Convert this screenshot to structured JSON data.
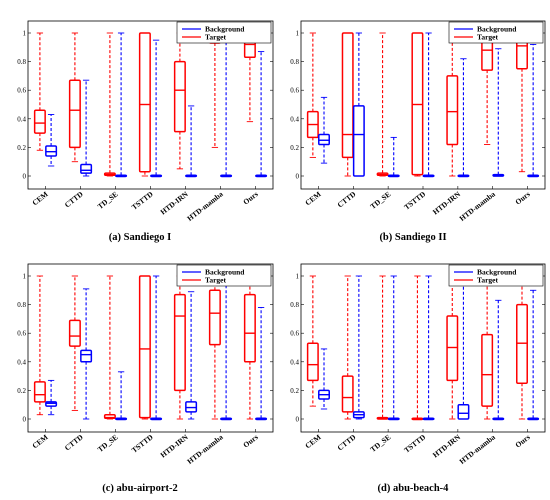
{
  "figure": {
    "colors": {
      "background": "#0000ff",
      "target": "#ff0000",
      "axis": "#000000"
    },
    "legend_entries": [
      "Background",
      "Target"
    ]
  },
  "chart_data": [
    {
      "type": "boxplot",
      "caption": "(a) Sandiego I",
      "categories": [
        "CEM",
        "CTTD",
        "TD_SE",
        "TSTTD",
        "HTD-IRN",
        "HTD-mamba",
        "Ours"
      ],
      "ylim": [
        0,
        1
      ],
      "yticks": [
        "0",
        "0.2",
        "0.4",
        "0.6",
        "0.8",
        "1"
      ],
      "legend": "top-right",
      "series": [
        {
          "name": "Target",
          "boxes": [
            {
              "min": 0.18,
              "q1": 0.3,
              "median": 0.37,
              "q3": 0.46,
              "max": 1.0
            },
            {
              "min": 0.1,
              "q1": 0.2,
              "median": 0.46,
              "q3": 0.67,
              "max": 1.0
            },
            {
              "min": 0.0,
              "q1": 0.005,
              "median": 0.01,
              "q3": 0.02,
              "max": 1.0
            },
            {
              "min": 0.0,
              "q1": 0.03,
              "median": 0.5,
              "q3": 1.0,
              "max": 1.0
            },
            {
              "min": 0.05,
              "q1": 0.31,
              "median": 0.6,
              "q3": 0.8,
              "max": 1.0
            },
            {
              "min": 0.2,
              "q1": 0.93,
              "median": 0.96,
              "q3": 0.985,
              "max": 1.0
            },
            {
              "min": 0.38,
              "q1": 0.83,
              "median": 0.92,
              "q3": 0.97,
              "max": 1.0
            }
          ]
        },
        {
          "name": "Background",
          "boxes": [
            {
              "min": 0.07,
              "q1": 0.14,
              "median": 0.17,
              "q3": 0.21,
              "max": 0.43
            },
            {
              "min": 0.0,
              "q1": 0.02,
              "median": 0.04,
              "q3": 0.08,
              "max": 0.67
            },
            {
              "min": 0.0,
              "q1": 0.0,
              "median": 0.0,
              "q3": 0.005,
              "max": 1.0
            },
            {
              "min": 0.0,
              "q1": 0.0,
              "median": 0.0,
              "q3": 0.005,
              "max": 0.95
            },
            {
              "min": 0.0,
              "q1": 0.0,
              "median": 0.0,
              "q3": 0.005,
              "max": 0.49
            },
            {
              "min": 0.0,
              "q1": 0.0,
              "median": 0.0,
              "q3": 0.005,
              "max": 1.0
            },
            {
              "min": 0.0,
              "q1": 0.0,
              "median": 0.0,
              "q3": 0.005,
              "max": 0.87
            }
          ]
        }
      ]
    },
    {
      "type": "boxplot",
      "caption": "(b) Sandiego II",
      "categories": [
        "CEM",
        "CTTD",
        "TD_SE",
        "TSTTD",
        "HTD-IRN",
        "HTD-mamba",
        "Ours"
      ],
      "ylim": [
        0,
        1
      ],
      "yticks": [
        "0",
        "0.2",
        "0.4",
        "0.6",
        "0.8",
        "1"
      ],
      "legend": "top-right",
      "series": [
        {
          "name": "Target",
          "boxes": [
            {
              "min": 0.13,
              "q1": 0.27,
              "median": 0.36,
              "q3": 0.45,
              "max": 1.0
            },
            {
              "min": 0.0,
              "q1": 0.13,
              "median": 0.29,
              "q3": 1.0,
              "max": 1.0
            },
            {
              "min": 0.0,
              "q1": 0.005,
              "median": 0.01,
              "q3": 0.02,
              "max": 1.0
            },
            {
              "min": 0.0,
              "q1": 0.01,
              "median": 0.5,
              "q3": 1.0,
              "max": 1.0
            },
            {
              "min": 0.0,
              "q1": 0.22,
              "median": 0.45,
              "q3": 0.7,
              "max": 1.0
            },
            {
              "min": 0.22,
              "q1": 0.74,
              "median": 0.88,
              "q3": 0.95,
              "max": 1.0
            },
            {
              "min": 0.03,
              "q1": 0.75,
              "median": 0.91,
              "q3": 0.98,
              "max": 1.0
            }
          ]
        },
        {
          "name": "Background",
          "boxes": [
            {
              "min": 0.09,
              "q1": 0.22,
              "median": 0.25,
              "q3": 0.29,
              "max": 0.55
            },
            {
              "min": 0.0,
              "q1": 0.0,
              "median": 0.29,
              "q3": 0.49,
              "max": 1.0
            },
            {
              "min": 0.0,
              "q1": 0.0,
              "median": 0.0,
              "q3": 0.005,
              "max": 0.27
            },
            {
              "min": 0.0,
              "q1": 0.0,
              "median": 0.0,
              "q3": 0.005,
              "max": 1.0
            },
            {
              "min": 0.0,
              "q1": 0.0,
              "median": 0.0,
              "q3": 0.005,
              "max": 0.82
            },
            {
              "min": 0.0,
              "q1": 0.0,
              "median": 0.0,
              "q3": 0.01,
              "max": 0.89
            },
            {
              "min": 0.0,
              "q1": 0.0,
              "median": 0.0,
              "q3": 0.005,
              "max": 0.92
            }
          ]
        }
      ]
    },
    {
      "type": "boxplot",
      "caption": "(c) abu-airport-2",
      "categories": [
        "CEM",
        "CTTD",
        "TD_SE",
        "TSTTD",
        "HTD-IRN",
        "HTD-mamba",
        "Ours"
      ],
      "ylim": [
        0,
        1
      ],
      "yticks": [
        "0",
        "0.2",
        "0.4",
        "0.6",
        "0.8",
        "1"
      ],
      "legend": "top-right",
      "series": [
        {
          "name": "Target",
          "boxes": [
            {
              "min": 0.03,
              "q1": 0.12,
              "median": 0.17,
              "q3": 0.26,
              "max": 1.0
            },
            {
              "min": 0.06,
              "q1": 0.51,
              "median": 0.58,
              "q3": 0.69,
              "max": 1.0
            },
            {
              "min": 0.0,
              "q1": 0.005,
              "median": 0.01,
              "q3": 0.03,
              "max": 1.0
            },
            {
              "min": 0.0,
              "q1": 0.01,
              "median": 0.49,
              "q3": 1.0,
              "max": 1.0
            },
            {
              "min": 0.0,
              "q1": 0.2,
              "median": 0.72,
              "q3": 0.87,
              "max": 1.0
            },
            {
              "min": 0.0,
              "q1": 0.52,
              "median": 0.74,
              "q3": 0.9,
              "max": 1.0
            },
            {
              "min": 0.0,
              "q1": 0.4,
              "median": 0.6,
              "q3": 0.87,
              "max": 1.0
            }
          ]
        },
        {
          "name": "Background",
          "boxes": [
            {
              "min": 0.03,
              "q1": 0.09,
              "median": 0.11,
              "q3": 0.12,
              "max": 0.27
            },
            {
              "min": 0.0,
              "q1": 0.4,
              "median": 0.45,
              "q3": 0.48,
              "max": 0.91
            },
            {
              "min": 0.0,
              "q1": 0.0,
              "median": 0.0,
              "q3": 0.005,
              "max": 0.33
            },
            {
              "min": 0.0,
              "q1": 0.0,
              "median": 0.0,
              "q3": 0.005,
              "max": 1.0
            },
            {
              "min": 0.0,
              "q1": 0.05,
              "median": 0.08,
              "q3": 0.12,
              "max": 0.89
            },
            {
              "min": 0.0,
              "q1": 0.0,
              "median": 0.0,
              "q3": 0.005,
              "max": 1.0
            },
            {
              "min": 0.0,
              "q1": 0.0,
              "median": 0.0,
              "q3": 0.005,
              "max": 0.78
            }
          ]
        }
      ]
    },
    {
      "type": "boxplot",
      "caption": "(d) abu-beach-4",
      "categories": [
        "CEM",
        "CTTD",
        "TD_SE",
        "TSTTD",
        "HTD-IRN",
        "HTD-mamba",
        "Ours"
      ],
      "ylim": [
        0,
        1
      ],
      "yticks": [
        "0",
        "0.2",
        "0.4",
        "0.6",
        "0.8",
        "1"
      ],
      "legend": "top-right",
      "series": [
        {
          "name": "Target",
          "boxes": [
            {
              "min": 0.09,
              "q1": 0.27,
              "median": 0.38,
              "q3": 0.53,
              "max": 1.0
            },
            {
              "min": 0.0,
              "q1": 0.05,
              "median": 0.15,
              "q3": 0.3,
              "max": 1.0
            },
            {
              "min": 0.0,
              "q1": 0.0,
              "median": 0.005,
              "q3": 0.01,
              "max": 1.0
            },
            {
              "min": 0.0,
              "q1": 0.0,
              "median": 0.0,
              "q3": 0.005,
              "max": 1.0
            },
            {
              "min": 0.0,
              "q1": 0.27,
              "median": 0.5,
              "q3": 0.72,
              "max": 1.0
            },
            {
              "min": 0.0,
              "q1": 0.09,
              "median": 0.31,
              "q3": 0.59,
              "max": 1.0
            },
            {
              "min": 0.0,
              "q1": 0.25,
              "median": 0.53,
              "q3": 0.8,
              "max": 1.0
            }
          ]
        },
        {
          "name": "Background",
          "boxes": [
            {
              "min": 0.07,
              "q1": 0.14,
              "median": 0.17,
              "q3": 0.2,
              "max": 0.49
            },
            {
              "min": 0.0,
              "q1": 0.01,
              "median": 0.03,
              "q3": 0.05,
              "max": 1.0
            },
            {
              "min": 0.0,
              "q1": 0.0,
              "median": 0.0,
              "q3": 0.005,
              "max": 1.0
            },
            {
              "min": 0.0,
              "q1": 0.0,
              "median": 0.0,
              "q3": 0.005,
              "max": 1.0
            },
            {
              "min": 0.0,
              "q1": 0.0,
              "median": 0.04,
              "q3": 0.1,
              "max": 0.96
            },
            {
              "min": 0.0,
              "q1": 0.0,
              "median": 0.0,
              "q3": 0.005,
              "max": 0.83
            },
            {
              "min": 0.0,
              "q1": 0.0,
              "median": 0.0,
              "q3": 0.005,
              "max": 0.9
            }
          ]
        }
      ]
    }
  ]
}
